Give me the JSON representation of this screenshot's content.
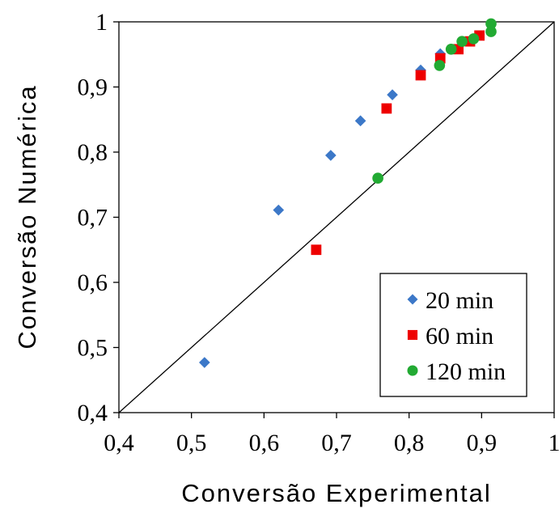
{
  "chart_data": {
    "type": "scatter",
    "title": "",
    "xlabel": "Conversão Experimental",
    "ylabel": "Conversão Numérica",
    "xlim": [
      0.4,
      1.0
    ],
    "ylim": [
      0.4,
      1.0
    ],
    "x_ticks": [
      "0,4",
      "0,5",
      "0,6",
      "0,7",
      "0,8",
      "0,9",
      "1"
    ],
    "y_ticks": [
      "0,4",
      "0,5",
      "0,6",
      "0,7",
      "0,8",
      "0,9",
      "1"
    ],
    "grid": false,
    "legend_position": "bottom-right",
    "reference_line": {
      "from": [
        0.4,
        0.4
      ],
      "to": [
        1.0,
        1.0
      ],
      "color": "#000000"
    },
    "series": [
      {
        "name": "20 min",
        "marker": "diamond",
        "color": "#3c78c8",
        "x": [
          0.518,
          0.62,
          0.692,
          0.733,
          0.777,
          0.816,
          0.843
        ],
        "y": [
          0.477,
          0.711,
          0.795,
          0.848,
          0.888,
          0.926,
          0.951
        ]
      },
      {
        "name": "60 min",
        "marker": "square",
        "color": "#ee0000",
        "x": [
          0.672,
          0.769,
          0.816,
          0.843,
          0.868,
          0.884,
          0.897
        ],
        "y": [
          0.65,
          0.867,
          0.918,
          0.944,
          0.958,
          0.97,
          0.979
        ]
      },
      {
        "name": "120 min",
        "marker": "circle",
        "color": "#22aa33",
        "x": [
          0.757,
          0.842,
          0.858,
          0.873,
          0.889,
          0.913,
          0.913
        ],
        "y": [
          0.76,
          0.933,
          0.958,
          0.97,
          0.974,
          0.985,
          0.997
        ]
      }
    ]
  }
}
